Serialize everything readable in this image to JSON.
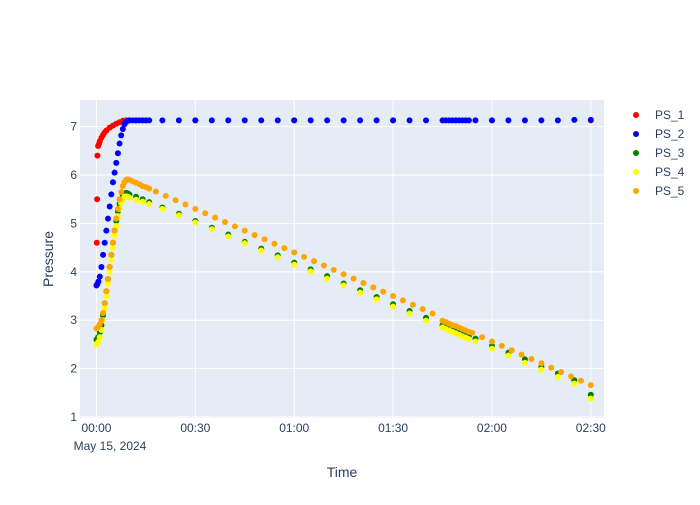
{
  "chart_data": {
    "type": "scatter",
    "title": "",
    "xlabel": "Time",
    "ylabel": "Pressure",
    "date_label": "May 15, 2024",
    "x_unit": "minutes after 00:00",
    "xlim": [
      -5,
      154
    ],
    "ylim": [
      0.98,
      7.55
    ],
    "x_ticks": [
      {
        "value": 0,
        "label": "00:00"
      },
      {
        "value": 30,
        "label": "00:30"
      },
      {
        "value": 60,
        "label": "01:00"
      },
      {
        "value": 90,
        "label": "01:30"
      },
      {
        "value": 120,
        "label": "02:00"
      },
      {
        "value": 150,
        "label": "02:30"
      }
    ],
    "y_ticks": [
      1,
      2,
      3,
      4,
      5,
      6,
      7
    ],
    "grid": true,
    "legend_position": "top-right",
    "plot_background": "#e5ecf6",
    "series": [
      {
        "name": "PS_1",
        "color": "#ff0000",
        "x": [
          0,
          0.1,
          0.2,
          0.3,
          0.5,
          0.8,
          1,
          1.5,
          2,
          2.5,
          3,
          4,
          5,
          6,
          7,
          8,
          9,
          10,
          12,
          15,
          30,
          60,
          90,
          120,
          150
        ],
        "y": [
          3.72,
          4.6,
          5.5,
          6.4,
          6.6,
          6.65,
          6.7,
          6.77,
          6.83,
          6.88,
          6.92,
          6.98,
          7.02,
          7.06,
          7.09,
          7.12,
          7.13,
          7.13,
          7.13,
          7.13,
          7.13,
          7.13,
          7.13,
          7.13,
          7.13
        ]
      },
      {
        "name": "PS_2",
        "color": "#0000ff",
        "x": [
          0,
          0.3,
          0.6,
          1,
          1.5,
          2,
          2.5,
          3,
          3.5,
          4,
          4.5,
          5,
          5.5,
          6,
          6.5,
          7,
          7.5,
          8,
          8.5,
          9,
          9.5,
          10,
          11,
          12,
          13,
          14,
          15,
          16,
          20,
          25,
          30,
          35,
          40,
          45,
          50,
          55,
          60,
          65,
          70,
          75,
          80,
          85,
          90,
          95,
          100,
          105,
          106,
          107,
          108,
          109,
          110,
          111,
          112,
          113,
          115,
          120,
          125,
          130,
          135,
          140,
          145,
          150
        ],
        "y": [
          3.72,
          3.75,
          3.8,
          3.9,
          4.1,
          4.35,
          4.6,
          4.85,
          5.1,
          5.35,
          5.6,
          5.85,
          6.05,
          6.25,
          6.45,
          6.65,
          6.82,
          6.95,
          7.05,
          7.1,
          7.12,
          7.13,
          7.13,
          7.13,
          7.13,
          7.13,
          7.13,
          7.13,
          7.13,
          7.13,
          7.13,
          7.13,
          7.13,
          7.13,
          7.13,
          7.13,
          7.13,
          7.13,
          7.13,
          7.13,
          7.13,
          7.13,
          7.13,
          7.13,
          7.13,
          7.13,
          7.13,
          7.13,
          7.13,
          7.13,
          7.13,
          7.13,
          7.13,
          7.13,
          7.13,
          7.13,
          7.13,
          7.13,
          7.13,
          7.13,
          7.14,
          7.14
        ]
      },
      {
        "name": "PS_3",
        "color": "#008000",
        "x": [
          0,
          0.5,
          1,
          1.5,
          2,
          2.5,
          3,
          3.5,
          4,
          4.5,
          5,
          5.5,
          6,
          6.5,
          7,
          7.5,
          8,
          8.5,
          9,
          9.5,
          10,
          12,
          14,
          16,
          20,
          25,
          30,
          35,
          40,
          45,
          50,
          55,
          60,
          65,
          70,
          75,
          80,
          85,
          90,
          95,
          100,
          105,
          106,
          107,
          108,
          109,
          110,
          111,
          112,
          113,
          115,
          120,
          125,
          130,
          135,
          140,
          145,
          150
        ],
        "y": [
          2.6,
          2.65,
          2.75,
          2.9,
          3.1,
          3.35,
          3.6,
          3.85,
          4.1,
          4.35,
          4.6,
          4.85,
          5.05,
          5.25,
          5.4,
          5.5,
          5.58,
          5.62,
          5.63,
          5.62,
          5.6,
          5.55,
          5.5,
          5.44,
          5.33,
          5.2,
          5.05,
          4.91,
          4.77,
          4.62,
          4.48,
          4.34,
          4.19,
          4.05,
          3.91,
          3.76,
          3.62,
          3.48,
          3.33,
          3.19,
          3.05,
          2.9,
          2.87,
          2.84,
          2.82,
          2.79,
          2.76,
          2.73,
          2.7,
          2.67,
          2.62,
          2.47,
          2.33,
          2.19,
          2.04,
          1.9,
          1.76,
          1.46
        ]
      },
      {
        "name": "PS_4",
        "color": "#ffff00",
        "x": [
          0,
          0.5,
          1,
          1.5,
          2,
          2.5,
          3,
          3.5,
          4,
          4.5,
          5,
          5.5,
          6,
          6.5,
          7,
          7.5,
          8,
          8.5,
          9,
          9.5,
          10,
          12,
          14,
          16,
          20,
          25,
          30,
          35,
          40,
          45,
          50,
          55,
          60,
          65,
          70,
          75,
          80,
          85,
          90,
          95,
          100,
          105,
          106,
          107,
          108,
          109,
          110,
          111,
          112,
          113,
          115,
          120,
          125,
          130,
          135,
          140,
          145,
          150
        ],
        "y": [
          2.5,
          2.55,
          2.65,
          2.8,
          3.0,
          3.25,
          3.5,
          3.75,
          4.0,
          4.25,
          4.5,
          4.75,
          4.95,
          5.15,
          5.3,
          5.42,
          5.5,
          5.55,
          5.56,
          5.55,
          5.53,
          5.49,
          5.45,
          5.4,
          5.3,
          5.17,
          5.02,
          4.88,
          4.73,
          4.59,
          4.44,
          4.3,
          4.15,
          4.01,
          3.86,
          3.72,
          3.57,
          3.43,
          3.28,
          3.14,
          2.99,
          2.85,
          2.82,
          2.79,
          2.76,
          2.73,
          2.7,
          2.67,
          2.64,
          2.61,
          2.56,
          2.41,
          2.27,
          2.12,
          1.98,
          1.83,
          1.69,
          1.38
        ]
      },
      {
        "name": "PS_5",
        "color": "#ffa500",
        "x": [
          0,
          0.5,
          1,
          1.5,
          2,
          2.5,
          3,
          3.5,
          4,
          4.5,
          5,
          5.5,
          6,
          6.5,
          7,
          7.5,
          8,
          8.5,
          9,
          9.5,
          10,
          11,
          12,
          13,
          14,
          15,
          16,
          18,
          21,
          24,
          27,
          30,
          33,
          36,
          39,
          42,
          45,
          48,
          51,
          54,
          57,
          60,
          63,
          66,
          69,
          72,
          75,
          78,
          81,
          84,
          87,
          90,
          93,
          96,
          99,
          102,
          105,
          106,
          107,
          108,
          109,
          110,
          111,
          112,
          113,
          114,
          117,
          120,
          123,
          126,
          129,
          132,
          135,
          138,
          141,
          144,
          147,
          150
        ],
        "y": [
          2.83,
          2.86,
          2.92,
          3.0,
          3.15,
          3.35,
          3.6,
          3.85,
          4.1,
          4.35,
          4.6,
          4.85,
          5.1,
          5.3,
          5.5,
          5.65,
          5.77,
          5.85,
          5.9,
          5.91,
          5.9,
          5.87,
          5.84,
          5.81,
          5.77,
          5.75,
          5.72,
          5.66,
          5.57,
          5.48,
          5.39,
          5.3,
          5.21,
          5.12,
          5.03,
          4.94,
          4.85,
          4.76,
          4.67,
          4.58,
          4.49,
          4.4,
          4.31,
          4.22,
          4.13,
          4.04,
          3.95,
          3.86,
          3.77,
          3.68,
          3.59,
          3.5,
          3.41,
          3.32,
          3.23,
          3.14,
          2.99,
          2.96,
          2.93,
          2.9,
          2.88,
          2.85,
          2.82,
          2.79,
          2.76,
          2.74,
          2.65,
          2.56,
          2.47,
          2.38,
          2.29,
          2.2,
          2.11,
          2.02,
          1.93,
          1.84,
          1.75,
          1.66
        ]
      }
    ]
  }
}
